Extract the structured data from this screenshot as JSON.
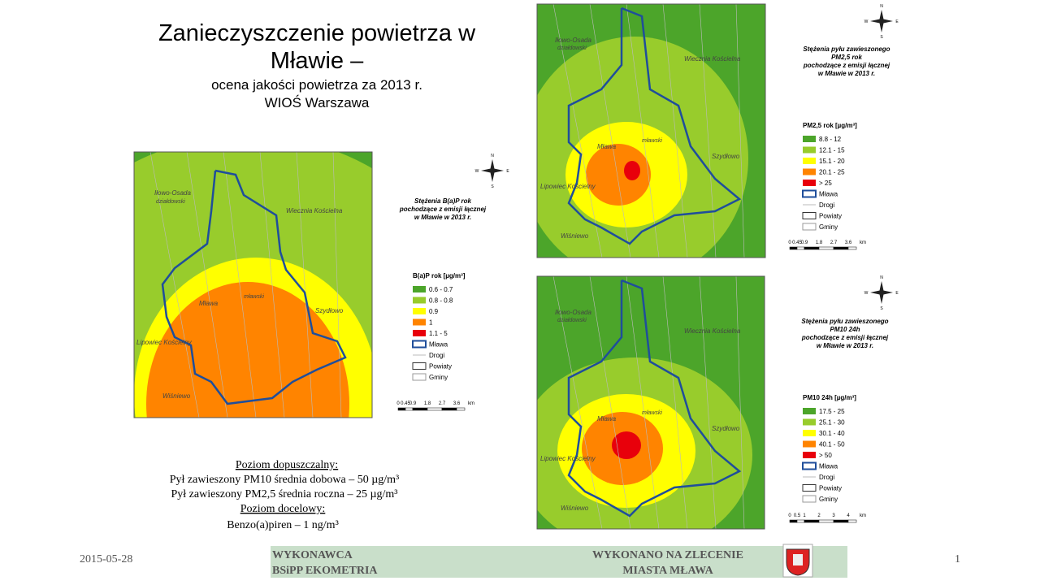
{
  "header": {
    "title_line1": "Zanieczyszczenie powietrza w",
    "title_line2": "Mławie –",
    "subtitle_line1": "ocena jakości powietrza za 2013 r.",
    "subtitle_line2": "WIOŚ Warszawa"
  },
  "maps": [
    {
      "title_lines": [
        "Stężenia B(a)P rok",
        "pochodzące z emisji łącznej",
        "w Mławie w 2013 r."
      ],
      "place_labels": [
        "Iłowo-Osada",
        "działdowski",
        "Wiecznia Kościelna",
        "Mława",
        "mławski",
        "Szydłowo",
        "Lipowiec Kościelny",
        "Wiśniewo"
      ],
      "legend_title": "B(a)P rok [µg/m³]",
      "legend_items": [
        {
          "label": "0.6 - 0.7",
          "color": "#4ca52a"
        },
        {
          "label": "0.8 - 0.8",
          "color": "#98cc2c"
        },
        {
          "label": "0.9",
          "color": "#ffff00"
        },
        {
          "label": "1",
          "color": "#ff8400"
        },
        {
          "label": "1.1 - 5",
          "color": "#e8000b"
        },
        {
          "label": "Mława",
          "color": "#1f4e9b"
        },
        {
          "label": "Drogi",
          "color": "#bbbbbb"
        },
        {
          "label": "Powiaty",
          "color": "#333333"
        },
        {
          "label": "Gminy",
          "color": "#999999"
        }
      ],
      "scale_labels": [
        "0",
        "0.45",
        "0.9",
        "1.8",
        "2.7",
        "3.6",
        "km"
      ],
      "compass": [
        "N",
        "S",
        "W",
        "E"
      ]
    },
    {
      "title_lines": [
        "Stężenia pyłu zawieszonego",
        "PM2,5 rok",
        "pochodzące z emisji łącznej",
        "w Mławie w 2013 r."
      ],
      "place_labels": [
        "Iłowo-Osada",
        "działdowski",
        "Wiecznia Kościelna",
        "Mława",
        "mławski",
        "Szydłowo",
        "Lipowiec Kościelny",
        "Wiśniewo"
      ],
      "legend_title": "PM2,5 rok [µg/m³]",
      "legend_items": [
        {
          "label": "8.8 - 12",
          "color": "#4ca52a"
        },
        {
          "label": "12.1 - 15",
          "color": "#98cc2c"
        },
        {
          "label": "15.1 - 20",
          "color": "#ffff00"
        },
        {
          "label": "20.1 - 25",
          "color": "#ff8400"
        },
        {
          "label": "> 25",
          "color": "#e8000b"
        },
        {
          "label": "Mława",
          "color": "#1f4e9b"
        },
        {
          "label": "Drogi",
          "color": "#bbbbbb"
        },
        {
          "label": "Powiaty",
          "color": "#333333"
        },
        {
          "label": "Gminy",
          "color": "#999999"
        }
      ],
      "scale_labels": [
        "0",
        "0.45",
        "0.9",
        "1.8",
        "2.7",
        "3.6",
        "km"
      ],
      "compass": [
        "N",
        "S",
        "W",
        "E"
      ]
    },
    {
      "title_lines": [
        "Stężenia pyłu zawieszonego",
        "PM10 24h",
        "pochodzące z emisji łącznej",
        "w Mławie w 2013 r."
      ],
      "place_labels": [
        "Iłowo-Osada",
        "działdowski",
        "Wiecznia Kościelna",
        "Mława",
        "mławski",
        "Szydłowo",
        "Lipowiec Kościelny",
        "Wiśniewo"
      ],
      "legend_title": "PM10 24h [µg/m³]",
      "legend_items": [
        {
          "label": "17.5 - 25",
          "color": "#4ca52a"
        },
        {
          "label": "25.1 - 30",
          "color": "#98cc2c"
        },
        {
          "label": "30.1 - 40",
          "color": "#ffff00"
        },
        {
          "label": "40.1 - 50",
          "color": "#ff8400"
        },
        {
          "label": "> 50",
          "color": "#e8000b"
        },
        {
          "label": "Mława",
          "color": "#1f4e9b"
        },
        {
          "label": "Drogi",
          "color": "#bbbbbb"
        },
        {
          "label": "Powiaty",
          "color": "#333333"
        },
        {
          "label": "Gminy",
          "color": "#999999"
        }
      ],
      "scale_labels": [
        "0",
        "0.5",
        "1",
        "2",
        "3",
        "4",
        "km"
      ],
      "compass": [
        "N",
        "S",
        "W",
        "E"
      ]
    }
  ],
  "limits": {
    "heading1": "Poziom  dopuszczalny:",
    "line1": "Pył zawieszony  PM10 średnia  dobowa – 50 µg/m³",
    "line2": "Pył zawieszony PM2,5 średnia roczna – 25 µg/m³",
    "heading2": "Poziom docelowy:",
    "line3": "Benzo(a)piren – 1 ng/m³"
  },
  "footer": {
    "date": "2015-05-28",
    "left_line1": "WYKONAWCA",
    "left_line2": "BSiPP EKOMETRIA",
    "right_line1": "WYKONANO NA ZLECENIE",
    "right_line2": "MIASTA MŁAWA",
    "page": "1"
  }
}
